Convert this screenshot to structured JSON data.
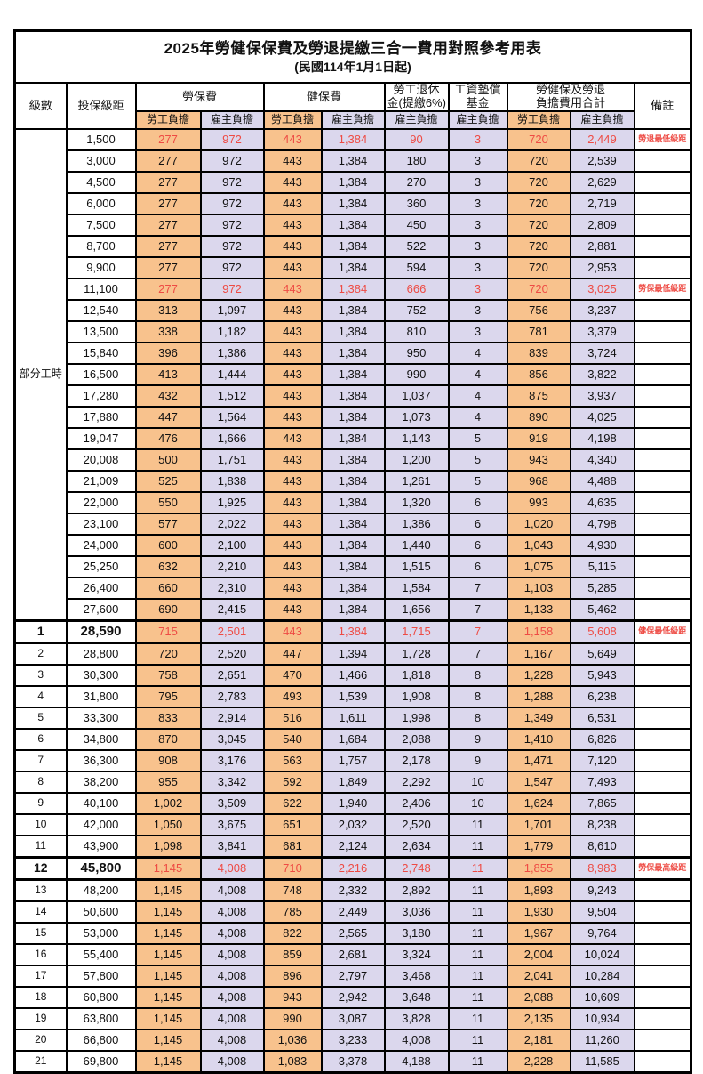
{
  "title": "2025年勞健保保費及勞退提繳三合一費用對照參考用表",
  "subtitle": "(民國114年1月1日起)",
  "header": {
    "level": "級數",
    "bracket": "投保級距",
    "labor_insurance": "勞保費",
    "health_insurance": "健保費",
    "pension_line1": "勞工退休",
    "pension_line2": "金(提繳6%)",
    "wage_fund_line1": "工資墊償",
    "wage_fund_line2": "基金",
    "total_line1": "勞健保及勞退",
    "total_line2": "負擔費用合計",
    "remark": "備註",
    "employee_share": "勞工負擔",
    "employer_share": "雇主負擔"
  },
  "part_time": {
    "label": "部分工時",
    "rowspan": 23
  },
  "colors": {
    "employee_share_bg": "#F8C28D",
    "employer_share_bg": "#DBD7ED",
    "highlight_red": "#EE4B44",
    "border": "#000000"
  },
  "rows": [
    {
      "lv": null,
      "br": "1,500",
      "a": "277",
      "b": "972",
      "c": "443",
      "d": "1,384",
      "e": "90",
      "f": "3",
      "g": "720",
      "h": "2,449",
      "rm": "勞退最低級距"
    },
    {
      "lv": null,
      "br": "3,000",
      "a": "277",
      "b": "972",
      "c": "443",
      "d": "1,384",
      "e": "180",
      "f": "3",
      "g": "720",
      "h": "2,539",
      "rm": ""
    },
    {
      "lv": null,
      "br": "4,500",
      "a": "277",
      "b": "972",
      "c": "443",
      "d": "1,384",
      "e": "270",
      "f": "3",
      "g": "720",
      "h": "2,629",
      "rm": ""
    },
    {
      "lv": null,
      "br": "6,000",
      "a": "277",
      "b": "972",
      "c": "443",
      "d": "1,384",
      "e": "360",
      "f": "3",
      "g": "720",
      "h": "2,719",
      "rm": ""
    },
    {
      "lv": null,
      "br": "7,500",
      "a": "277",
      "b": "972",
      "c": "443",
      "d": "1,384",
      "e": "450",
      "f": "3",
      "g": "720",
      "h": "2,809",
      "rm": ""
    },
    {
      "lv": null,
      "br": "8,700",
      "a": "277",
      "b": "972",
      "c": "443",
      "d": "1,384",
      "e": "522",
      "f": "3",
      "g": "720",
      "h": "2,881",
      "rm": ""
    },
    {
      "lv": null,
      "br": "9,900",
      "a": "277",
      "b": "972",
      "c": "443",
      "d": "1,384",
      "e": "594",
      "f": "3",
      "g": "720",
      "h": "2,953",
      "rm": ""
    },
    {
      "lv": null,
      "br": "11,100",
      "a": "277",
      "b": "972",
      "c": "443",
      "d": "1,384",
      "e": "666",
      "f": "3",
      "g": "720",
      "h": "3,025",
      "rm": "勞保最低級距"
    },
    {
      "lv": null,
      "br": "12,540",
      "a": "313",
      "b": "1,097",
      "c": "443",
      "d": "1,384",
      "e": "752",
      "f": "3",
      "g": "756",
      "h": "3,237",
      "rm": ""
    },
    {
      "lv": null,
      "br": "13,500",
      "a": "338",
      "b": "1,182",
      "c": "443",
      "d": "1,384",
      "e": "810",
      "f": "3",
      "g": "781",
      "h": "3,379",
      "rm": ""
    },
    {
      "lv": null,
      "br": "15,840",
      "a": "396",
      "b": "1,386",
      "c": "443",
      "d": "1,384",
      "e": "950",
      "f": "4",
      "g": "839",
      "h": "3,724",
      "rm": ""
    },
    {
      "lv": null,
      "br": "16,500",
      "a": "413",
      "b": "1,444",
      "c": "443",
      "d": "1,384",
      "e": "990",
      "f": "4",
      "g": "856",
      "h": "3,822",
      "rm": ""
    },
    {
      "lv": null,
      "br": "17,280",
      "a": "432",
      "b": "1,512",
      "c": "443",
      "d": "1,384",
      "e": "1,037",
      "f": "4",
      "g": "875",
      "h": "3,937",
      "rm": ""
    },
    {
      "lv": null,
      "br": "17,880",
      "a": "447",
      "b": "1,564",
      "c": "443",
      "d": "1,384",
      "e": "1,073",
      "f": "4",
      "g": "890",
      "h": "4,025",
      "rm": ""
    },
    {
      "lv": null,
      "br": "19,047",
      "a": "476",
      "b": "1,666",
      "c": "443",
      "d": "1,384",
      "e": "1,143",
      "f": "5",
      "g": "919",
      "h": "4,198",
      "rm": ""
    },
    {
      "lv": null,
      "br": "20,008",
      "a": "500",
      "b": "1,751",
      "c": "443",
      "d": "1,384",
      "e": "1,200",
      "f": "5",
      "g": "943",
      "h": "4,340",
      "rm": ""
    },
    {
      "lv": null,
      "br": "21,009",
      "a": "525",
      "b": "1,838",
      "c": "443",
      "d": "1,384",
      "e": "1,261",
      "f": "5",
      "g": "968",
      "h": "4,488",
      "rm": ""
    },
    {
      "lv": null,
      "br": "22,000",
      "a": "550",
      "b": "1,925",
      "c": "443",
      "d": "1,384",
      "e": "1,320",
      "f": "6",
      "g": "993",
      "h": "4,635",
      "rm": ""
    },
    {
      "lv": null,
      "br": "23,100",
      "a": "577",
      "b": "2,022",
      "c": "443",
      "d": "1,384",
      "e": "1,386",
      "f": "6",
      "g": "1,020",
      "h": "4,798",
      "rm": ""
    },
    {
      "lv": null,
      "br": "24,000",
      "a": "600",
      "b": "2,100",
      "c": "443",
      "d": "1,384",
      "e": "1,440",
      "f": "6",
      "g": "1,043",
      "h": "4,930",
      "rm": ""
    },
    {
      "lv": null,
      "br": "25,250",
      "a": "632",
      "b": "2,210",
      "c": "443",
      "d": "1,384",
      "e": "1,515",
      "f": "6",
      "g": "1,075",
      "h": "5,115",
      "rm": ""
    },
    {
      "lv": null,
      "br": "26,400",
      "a": "660",
      "b": "2,310",
      "c": "443",
      "d": "1,384",
      "e": "1,584",
      "f": "7",
      "g": "1,103",
      "h": "5,285",
      "rm": ""
    },
    {
      "lv": null,
      "br": "27,600",
      "a": "690",
      "b": "2,415",
      "c": "443",
      "d": "1,384",
      "e": "1,656",
      "f": "7",
      "g": "1,133",
      "h": "5,462",
      "rm": ""
    },
    {
      "lv": "1",
      "br": "28,590",
      "a": "715",
      "b": "2,501",
      "c": "443",
      "d": "1,384",
      "e": "1,715",
      "f": "7",
      "g": "1,158",
      "h": "5,608",
      "rm": "健保最低級距"
    },
    {
      "lv": "2",
      "br": "28,800",
      "a": "720",
      "b": "2,520",
      "c": "447",
      "d": "1,394",
      "e": "1,728",
      "f": "7",
      "g": "1,167",
      "h": "5,649",
      "rm": ""
    },
    {
      "lv": "3",
      "br": "30,300",
      "a": "758",
      "b": "2,651",
      "c": "470",
      "d": "1,466",
      "e": "1,818",
      "f": "8",
      "g": "1,228",
      "h": "5,943",
      "rm": ""
    },
    {
      "lv": "4",
      "br": "31,800",
      "a": "795",
      "b": "2,783",
      "c": "493",
      "d": "1,539",
      "e": "1,908",
      "f": "8",
      "g": "1,288",
      "h": "6,238",
      "rm": ""
    },
    {
      "lv": "5",
      "br": "33,300",
      "a": "833",
      "b": "2,914",
      "c": "516",
      "d": "1,611",
      "e": "1,998",
      "f": "8",
      "g": "1,349",
      "h": "6,531",
      "rm": ""
    },
    {
      "lv": "6",
      "br": "34,800",
      "a": "870",
      "b": "3,045",
      "c": "540",
      "d": "1,684",
      "e": "2,088",
      "f": "9",
      "g": "1,410",
      "h": "6,826",
      "rm": ""
    },
    {
      "lv": "7",
      "br": "36,300",
      "a": "908",
      "b": "3,176",
      "c": "563",
      "d": "1,757",
      "e": "2,178",
      "f": "9",
      "g": "1,471",
      "h": "7,120",
      "rm": ""
    },
    {
      "lv": "8",
      "br": "38,200",
      "a": "955",
      "b": "3,342",
      "c": "592",
      "d": "1,849",
      "e": "2,292",
      "f": "10",
      "g": "1,547",
      "h": "7,493",
      "rm": ""
    },
    {
      "lv": "9",
      "br": "40,100",
      "a": "1,002",
      "b": "3,509",
      "c": "622",
      "d": "1,940",
      "e": "2,406",
      "f": "10",
      "g": "1,624",
      "h": "7,865",
      "rm": ""
    },
    {
      "lv": "10",
      "br": "42,000",
      "a": "1,050",
      "b": "3,675",
      "c": "651",
      "d": "2,032",
      "e": "2,520",
      "f": "11",
      "g": "1,701",
      "h": "8,238",
      "rm": ""
    },
    {
      "lv": "11",
      "br": "43,900",
      "a": "1,098",
      "b": "3,841",
      "c": "681",
      "d": "2,124",
      "e": "2,634",
      "f": "11",
      "g": "1,779",
      "h": "8,610",
      "rm": ""
    },
    {
      "lv": "12",
      "br": "45,800",
      "a": "1,145",
      "b": "4,008",
      "c": "710",
      "d": "2,216",
      "e": "2,748",
      "f": "11",
      "g": "1,855",
      "h": "8,983",
      "rm": "勞保最高級距"
    },
    {
      "lv": "13",
      "br": "48,200",
      "a": "1,145",
      "b": "4,008",
      "c": "748",
      "d": "2,332",
      "e": "2,892",
      "f": "11",
      "g": "1,893",
      "h": "9,243",
      "rm": ""
    },
    {
      "lv": "14",
      "br": "50,600",
      "a": "1,145",
      "b": "4,008",
      "c": "785",
      "d": "2,449",
      "e": "3,036",
      "f": "11",
      "g": "1,930",
      "h": "9,504",
      "rm": ""
    },
    {
      "lv": "15",
      "br": "53,000",
      "a": "1,145",
      "b": "4,008",
      "c": "822",
      "d": "2,565",
      "e": "3,180",
      "f": "11",
      "g": "1,967",
      "h": "9,764",
      "rm": ""
    },
    {
      "lv": "16",
      "br": "55,400",
      "a": "1,145",
      "b": "4,008",
      "c": "859",
      "d": "2,681",
      "e": "3,324",
      "f": "11",
      "g": "2,004",
      "h": "10,024",
      "rm": ""
    },
    {
      "lv": "17",
      "br": "57,800",
      "a": "1,145",
      "b": "4,008",
      "c": "896",
      "d": "2,797",
      "e": "3,468",
      "f": "11",
      "g": "2,041",
      "h": "10,284",
      "rm": ""
    },
    {
      "lv": "18",
      "br": "60,800",
      "a": "1,145",
      "b": "4,008",
      "c": "943",
      "d": "2,942",
      "e": "3,648",
      "f": "11",
      "g": "2,088",
      "h": "10,609",
      "rm": ""
    },
    {
      "lv": "19",
      "br": "63,800",
      "a": "1,145",
      "b": "4,008",
      "c": "990",
      "d": "3,087",
      "e": "3,828",
      "f": "11",
      "g": "2,135",
      "h": "10,934",
      "rm": ""
    },
    {
      "lv": "20",
      "br": "66,800",
      "a": "1,145",
      "b": "4,008",
      "c": "1,036",
      "d": "3,233",
      "e": "4,008",
      "f": "11",
      "g": "2,181",
      "h": "11,260",
      "rm": ""
    },
    {
      "lv": "21",
      "br": "69,800",
      "a": "1,145",
      "b": "4,008",
      "c": "1,083",
      "d": "3,378",
      "e": "4,188",
      "f": "11",
      "g": "2,228",
      "h": "11,585",
      "rm": ""
    }
  ]
}
